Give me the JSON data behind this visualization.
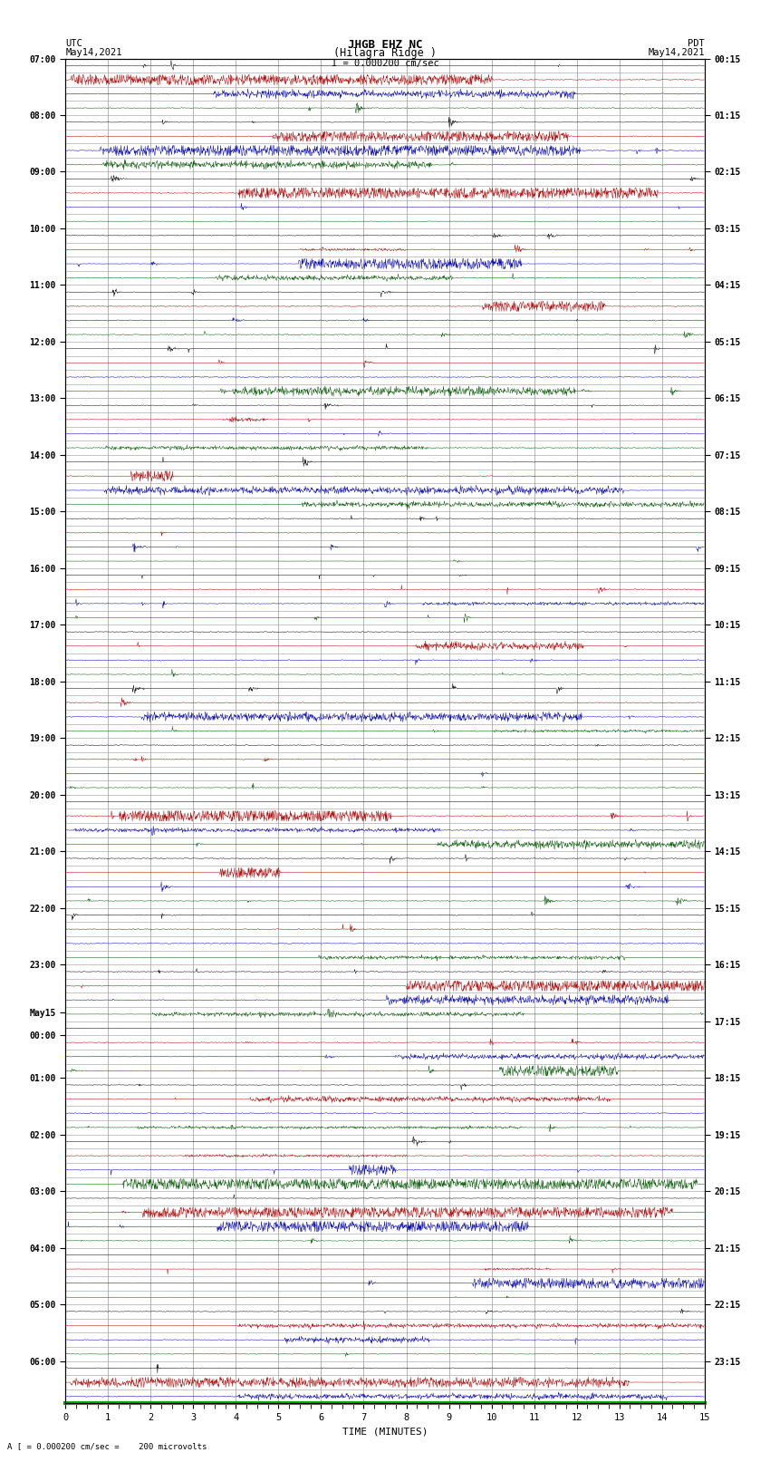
{
  "title_line1": "JHGB EHZ NC",
  "title_line2": "(Hilagra Ridge )",
  "scale_label": "I = 0.000200 cm/sec",
  "utc_label": "UTC",
  "utc_date": "May14,2021",
  "pdt_label": "PDT",
  "pdt_date": "May14,2021",
  "bottom_label": "TIME (MINUTES)",
  "bottom_note": "A [ = 0.000200 cm/sec =    200 microvolts",
  "x_ticks": [
    0,
    1,
    2,
    3,
    4,
    5,
    6,
    7,
    8,
    9,
    10,
    11,
    12,
    13,
    14,
    15
  ],
  "left_times_labeled": {
    "0": "07:00",
    "4": "08:00",
    "8": "09:00",
    "12": "10:00",
    "16": "11:00",
    "20": "12:00",
    "24": "13:00",
    "28": "14:00",
    "32": "15:00",
    "36": "16:00",
    "40": "17:00",
    "44": "18:00",
    "48": "19:00",
    "52": "20:00",
    "56": "21:00",
    "60": "22:00",
    "64": "23:00",
    "68": "May15",
    "69": "00:00",
    "72": "01:00",
    "76": "02:00",
    "80": "03:00",
    "84": "04:00",
    "88": "05:00",
    "92": "06:00"
  },
  "right_times_labeled": {
    "0": "00:15",
    "4": "01:15",
    "8": "02:15",
    "12": "03:15",
    "16": "04:15",
    "20": "05:15",
    "24": "06:15",
    "28": "07:15",
    "32": "08:15",
    "36": "09:15",
    "40": "10:15",
    "44": "11:15",
    "48": "12:15",
    "52": "13:15",
    "56": "14:15",
    "60": "15:15",
    "64": "16:15",
    "68": "17:15",
    "72": "18:15",
    "76": "19:15",
    "80": "20:15",
    "84": "21:15",
    "88": "22:15",
    "92": "23:15"
  },
  "n_rows": 95,
  "minutes": 15,
  "bg_color": "#ffffff",
  "trace_color_black": "#000000",
  "trace_color_red": "#aa0000",
  "trace_color_blue": "#0000aa",
  "trace_color_green": "#005500",
  "grid_color": "#aaaaaa",
  "figsize": [
    8.5,
    16.13
  ],
  "dpi": 100
}
